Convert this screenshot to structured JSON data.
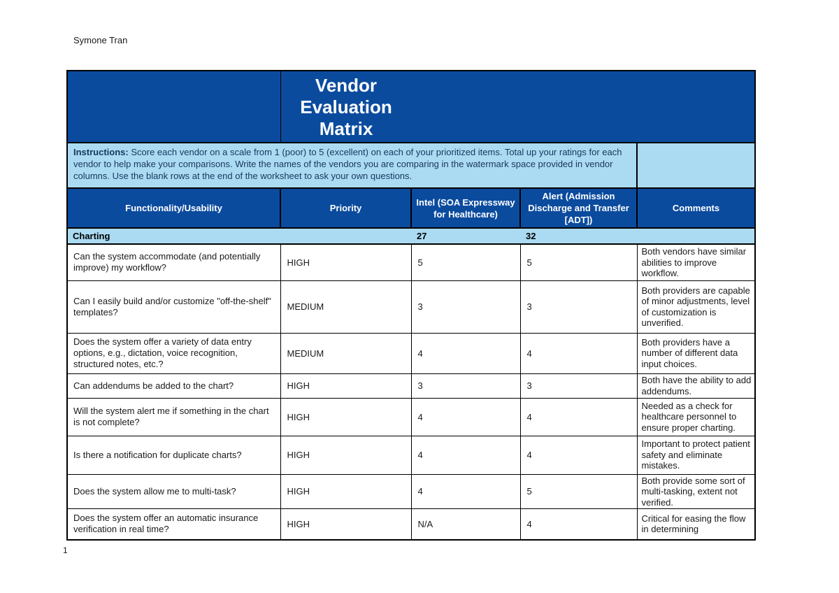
{
  "page": {
    "author": "Symone Tran",
    "page_number": "1"
  },
  "colors": {
    "dark-blue": "#0b4b9e",
    "light-blue": "#abdbf2",
    "instr-text": "#17365d"
  },
  "table": {
    "title": "Vendor Evaluation Matrix",
    "instructions_label": "Instructions:",
    "instructions_text": "Score each vendor on a scale from 1 (poor) to 5 (excellent) on each of your prioritized items. Total up your ratings for each vendor to help make your comparisons. Write the names of the vendors you are comparing in the watermark space provided in vendor columns. Use the blank rows at the end of the worksheet to ask your own questions.",
    "columns": [
      "Functionality/Usability",
      "Priority",
      "Intel (SOA Expressway for Healthcare)",
      "Alert (Admission Discharge and Transfer [ADT])",
      "Comments"
    ],
    "section": {
      "label": "Charting",
      "intel_total": "27",
      "alert_total": "32"
    },
    "rows": [
      {
        "question": "Can the system accommodate (and potentially improve) my workflow?",
        "priority": "HIGH",
        "intel": "5",
        "alert": "5",
        "comment": "Both vendors have similar abilities to improve workflow."
      },
      {
        "question": "Can I easily build and/or customize \"off-the-shelf\" templates?",
        "priority": "MEDIUM",
        "intel": "3",
        "alert": "3",
        "comment": "Both providers are capable of minor adjustments, level of customization is unverified."
      },
      {
        "question": "Does the system offer a variety of data entry options, e.g., dictation, voice recognition, structured notes, etc.?",
        "priority": "MEDIUM",
        "intel": "4",
        "alert": "4",
        "comment": "Both providers have a number of different data input choices."
      },
      {
        "question": "Can addendums be added to the chart?",
        "priority": "HIGH",
        "intel": "3",
        "alert": "3",
        "comment": "Both have the ability to add addendums."
      },
      {
        "question": "Will the system alert me if something in the chart is not complete?",
        "priority": "HIGH",
        "intel": "4",
        "alert": "4",
        "comment": "Needed as a check for healthcare personnel to ensure proper charting."
      },
      {
        "question": "Is there a notification for duplicate charts?",
        "priority": "HIGH",
        "intel": "4",
        "alert": "4",
        "comment": "Important to protect patient safety and eliminate mistakes."
      },
      {
        "question": "Does the system allow me to multi-task?",
        "priority": "HIGH",
        "intel": "4",
        "alert": "5",
        "comment": "Both provide some sort of multi-tasking, extent not verified."
      },
      {
        "question": "Does the system offer an automatic insurance verification in real time?",
        "priority": "HIGH",
        "intel": "N/A",
        "alert": "4",
        "comment": "Critical for easing the flow in determining"
      }
    ]
  }
}
